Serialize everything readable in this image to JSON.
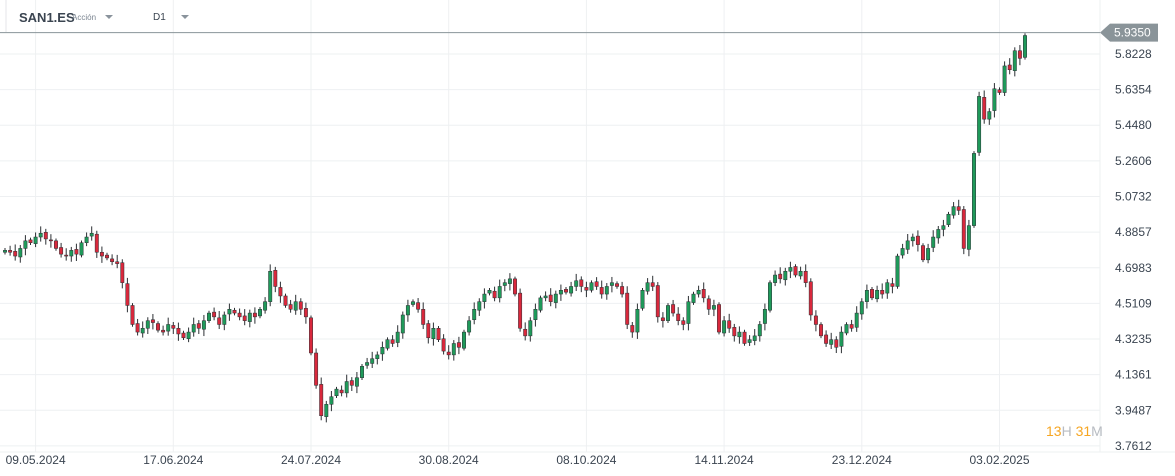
{
  "header": {
    "symbol": "SAN1.ES",
    "type": "Acción",
    "timeframe": "D1"
  },
  "timer": {
    "hours": "13",
    "h": "H",
    "minutes": "31",
    "m": "M"
  },
  "colors": {
    "up": "#1f9a5a",
    "down": "#d9283c",
    "grid": "#eef0f2",
    "line": "#8a9499"
  },
  "chart_data": {
    "type": "candlestick",
    "title": "SAN1.ES D1",
    "current_price": "5.9350",
    "y_ticks": [
      "5.8228",
      "5.6354",
      "5.4480",
      "5.2606",
      "5.0732",
      "4.8857",
      "4.6983",
      "4.5109",
      "4.3235",
      "4.1361",
      "3.9487",
      "3.7612"
    ],
    "x_ticks": [
      {
        "label": "09.05.2024",
        "index": 6
      },
      {
        "label": "17.06.2024",
        "index": 33
      },
      {
        "label": "24.07.2024",
        "index": 60
      },
      {
        "label": "30.08.2024",
        "index": 87
      },
      {
        "label": "08.10.2024",
        "index": 114
      },
      {
        "label": "14.11.2024",
        "index": 141
      },
      {
        "label": "23.12.2024",
        "index": 168
      },
      {
        "label": "03.02.2025",
        "index": 195
      }
    ],
    "ylim": [
      3.7612,
      5.935
    ],
    "close": [
      4.79,
      4.78,
      4.76,
      4.8,
      4.84,
      4.83,
      4.86,
      4.88,
      4.85,
      4.84,
      4.8,
      4.77,
      4.76,
      4.79,
      4.77,
      4.83,
      4.86,
      4.88,
      4.78,
      4.76,
      4.75,
      4.73,
      4.72,
      4.62,
      4.5,
      4.4,
      4.36,
      4.38,
      4.42,
      4.41,
      4.37,
      4.36,
      4.4,
      4.38,
      4.35,
      4.33,
      4.36,
      4.4,
      4.38,
      4.42,
      4.46,
      4.44,
      4.4,
      4.45,
      4.48,
      4.46,
      4.44,
      4.42,
      4.46,
      4.44,
      4.48,
      4.52,
      4.68,
      4.6,
      4.55,
      4.5,
      4.48,
      4.52,
      4.48,
      4.44,
      4.25,
      4.08,
      3.92,
      3.98,
      4.02,
      4.06,
      4.04,
      4.1,
      4.08,
      4.12,
      4.18,
      4.2,
      4.22,
      4.24,
      4.28,
      4.32,
      4.3,
      4.36,
      4.45,
      4.5,
      4.52,
      4.48,
      4.4,
      4.33,
      4.38,
      4.32,
      4.26,
      4.24,
      4.3,
      4.28,
      4.36,
      4.42,
      4.48,
      4.52,
      4.56,
      4.58,
      4.54,
      4.6,
      4.62,
      4.64,
      4.56,
      4.38,
      4.34,
      4.42,
      4.48,
      4.54,
      4.55,
      4.52,
      4.56,
      4.58,
      4.57,
      4.6,
      4.63,
      4.6,
      4.58,
      4.62,
      4.6,
      4.56,
      4.6,
      4.62,
      4.6,
      4.56,
      4.4,
      4.36,
      4.48,
      4.58,
      4.62,
      4.6,
      4.44,
      4.42,
      4.5,
      4.46,
      4.42,
      4.4,
      4.52,
      4.56,
      4.58,
      4.54,
      4.48,
      4.5,
      4.36,
      4.42,
      4.38,
      4.34,
      4.36,
      4.3,
      4.32,
      4.34,
      4.4,
      4.48,
      4.62,
      4.66,
      4.64,
      4.68,
      4.7,
      4.66,
      4.68,
      4.62,
      4.45,
      4.4,
      4.34,
      4.3,
      4.32,
      4.28,
      4.36,
      4.4,
      4.38,
      4.46,
      4.52,
      4.58,
      4.54,
      4.58,
      4.56,
      4.62,
      4.6,
      4.76,
      4.8,
      4.84,
      4.86,
      4.82,
      4.74,
      4.8,
      4.86,
      4.9,
      4.92,
      4.98,
      5.02,
      5.0,
      4.8,
      4.92,
      5.3,
      5.6,
      5.48,
      5.52,
      5.64,
      5.62,
      5.76,
      5.74,
      5.84,
      5.8,
      5.92
    ]
  }
}
